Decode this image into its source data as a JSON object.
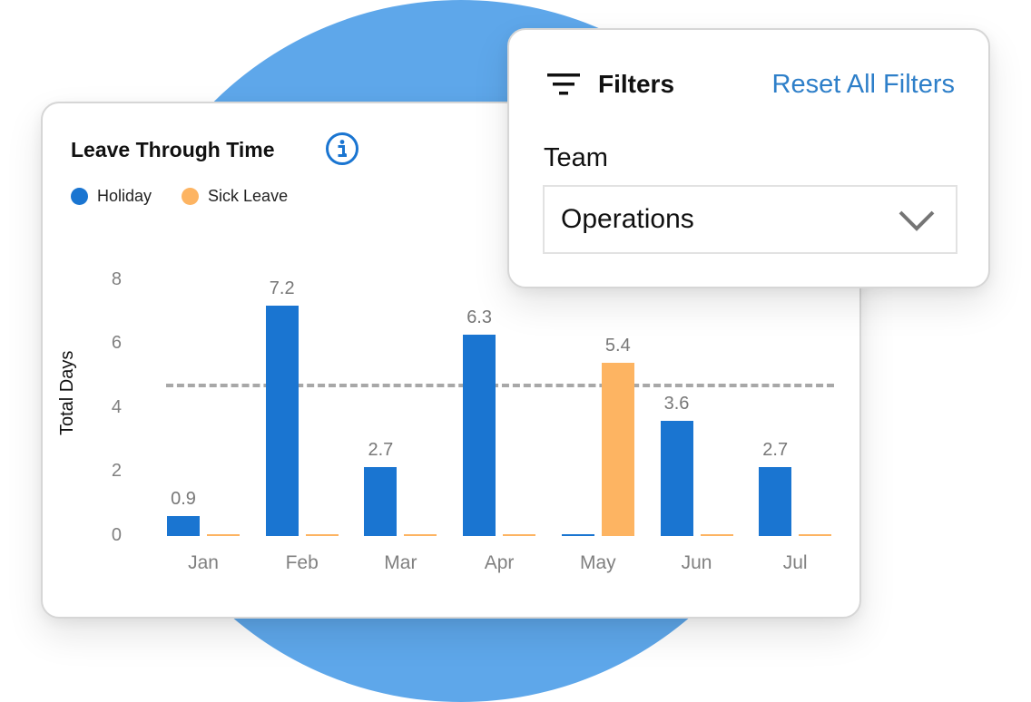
{
  "colors": {
    "holiday": "#1a75d1",
    "sick_leave": "#fdb462",
    "accent_link": "#2e7fc9",
    "background_circle": "#5ea7ea"
  },
  "chart_card": {
    "title": "Leave Through Time",
    "info_icon": "info-circle-icon",
    "legend": [
      {
        "label": "Holiday",
        "color": "#1a75d1"
      },
      {
        "label": "Sick Leave",
        "color": "#fdb462"
      }
    ]
  },
  "filters": {
    "icon": "filter-lines-icon",
    "title": "Filters",
    "reset_label": "Reset All Filters",
    "team_label": "Team",
    "team_value": "Operations"
  },
  "chart_data": {
    "type": "bar",
    "title": "Leave Through Time",
    "xlabel": "",
    "ylabel": "Total Days",
    "ylim": [
      0,
      8
    ],
    "yticks": [
      "0",
      "2",
      "4",
      "6",
      "8"
    ],
    "grid": false,
    "legend_position": "top-left",
    "categories": [
      "Jan",
      "Feb",
      "Mar",
      "Apr",
      "May",
      "Jun",
      "Jul"
    ],
    "series": [
      {
        "name": "Holiday",
        "color": "#1a75d1",
        "values": [
          0.9,
          7.2,
          2.7,
          6.3,
          0,
          3.6,
          2.7
        ]
      },
      {
        "name": "Sick Leave",
        "color": "#fdb462",
        "values": [
          0,
          0,
          0,
          0,
          5.4,
          0,
          0
        ]
      }
    ],
    "data_labels": [
      "0.9",
      "7.2",
      "2.7",
      "6.3",
      "5.4",
      "3.6",
      "2.7"
    ],
    "reference_line": {
      "style": "dashed",
      "value": 4.7,
      "color": "#a8a8a8"
    }
  }
}
